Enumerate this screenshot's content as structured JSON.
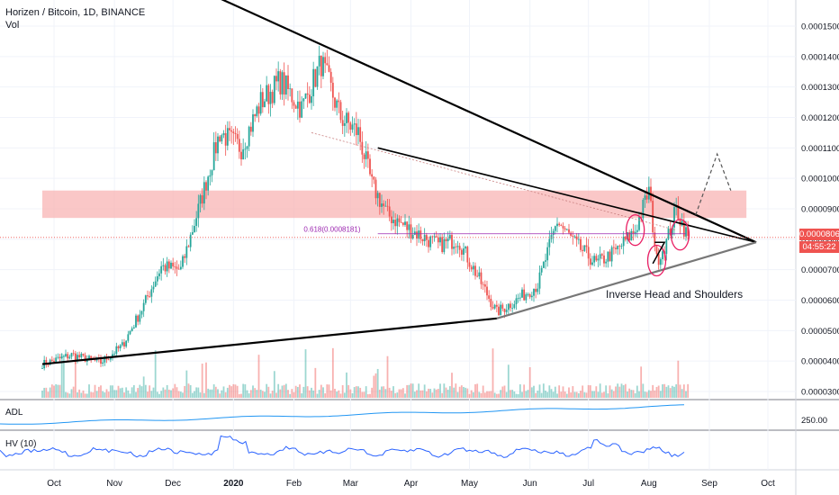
{
  "header": {
    "symbol_line": "Horizen / Bitcoin, 1D, BINANCE",
    "volume_label": "Vol"
  },
  "price_axis": {
    "ticks": [
      "0.00015000",
      "0.00014000",
      "0.00013000",
      "0.00012000",
      "0.00011000",
      "0.00010000",
      "0.00009000",
      "0.00008000",
      "0.00007000",
      "0.00006000",
      "0.00005000",
      "0.00004000",
      "0.00003000"
    ],
    "tick_values": [
      0.00015,
      0.00014,
      0.00013,
      0.00012,
      0.00011,
      0.0001,
      9e-05,
      8e-05,
      7e-05,
      6e-05,
      5e-05,
      4e-05,
      3e-05
    ],
    "current_price": "0.00008062",
    "countdown": "04:55:22",
    "badge_color": "#ef5350"
  },
  "time_axis": {
    "labels": [
      "Oct",
      "Nov",
      "Dec",
      "2020",
      "Feb",
      "Mar",
      "Apr",
      "May",
      "Jun",
      "Jul",
      "Aug",
      "Sep",
      "Oct"
    ]
  },
  "annotations": {
    "pattern_label": "Inverse Head and Shoulders",
    "fib_label": "0.618(0.0008181)",
    "resistance_zone_color": "#f8b4b4"
  },
  "indicators": {
    "adl": {
      "label": "ADL",
      "axis_tick": "250.00"
    },
    "hv": {
      "label": "HV (10)"
    }
  },
  "colors": {
    "up": "#26a69a",
    "down": "#ef5350",
    "adl_line": "#2196f3",
    "hv_line": "#2962ff",
    "trendline": "#000000",
    "pink_circle": "#e91e63"
  },
  "chart_data": {
    "type": "candlestick",
    "title": "Horizen / Bitcoin, 1D, BINANCE",
    "x_range": [
      "2019-09-25",
      "2020-10-10"
    ],
    "ylim": [
      2.5e-05,
      0.000155
    ],
    "y_scale": "linear",
    "grid": true,
    "close_path": [
      {
        "date": "2019-09-25",
        "close": 3.9e-05
      },
      {
        "date": "2019-10-10",
        "close": 4.2e-05
      },
      {
        "date": "2019-10-25",
        "close": 3.95e-05
      },
      {
        "date": "2019-11-05",
        "close": 4.5e-05
      },
      {
        "date": "2019-11-15",
        "close": 5.7e-05
      },
      {
        "date": "2019-11-25",
        "close": 7.1e-05
      },
      {
        "date": "2019-12-05",
        "close": 7e-05
      },
      {
        "date": "2019-12-15",
        "close": 9.2e-05
      },
      {
        "date": "2019-12-25",
        "close": 0.000115
      },
      {
        "date": "2020-01-05",
        "close": 0.00011
      },
      {
        "date": "2020-01-15",
        "close": 0.000125
      },
      {
        "date": "2020-01-25",
        "close": 0.000132
      },
      {
        "date": "2020-02-05",
        "close": 0.000123
      },
      {
        "date": "2020-02-15",
        "close": 0.000138
      },
      {
        "date": "2020-02-25",
        "close": 0.00012
      },
      {
        "date": "2020-03-05",
        "close": 0.000115
      },
      {
        "date": "2020-03-12",
        "close": 9.8e-05
      },
      {
        "date": "2020-03-20",
        "close": 8.8e-05
      },
      {
        "date": "2020-04-01",
        "close": 8.3e-05
      },
      {
        "date": "2020-04-15",
        "close": 7.8e-05
      },
      {
        "date": "2020-04-25",
        "close": 8e-05
      },
      {
        "date": "2020-05-05",
        "close": 6.8e-05
      },
      {
        "date": "2020-05-15",
        "close": 5.6e-05
      },
      {
        "date": "2020-05-25",
        "close": 6e-05
      },
      {
        "date": "2020-06-05",
        "close": 6.5e-05
      },
      {
        "date": "2020-06-15",
        "close": 8.6e-05
      },
      {
        "date": "2020-06-25",
        "close": 7.8e-05
      },
      {
        "date": "2020-07-05",
        "close": 7.2e-05
      },
      {
        "date": "2020-07-15",
        "close": 7.6e-05
      },
      {
        "date": "2020-07-25",
        "close": 8.3e-05
      },
      {
        "date": "2020-08-01",
        "close": 9.6e-05
      },
      {
        "date": "2020-08-05",
        "close": 7.3e-05
      },
      {
        "date": "2020-08-10",
        "close": 7.9e-05
      },
      {
        "date": "2020-08-15",
        "close": 9e-05
      },
      {
        "date": "2020-08-21",
        "close": 8.06e-05
      }
    ],
    "trendlines": [
      {
        "name": "upper",
        "from": {
          "date": "2019-12-15",
          "price": 0.000162
        },
        "to": {
          "date": "2020-09-25",
          "price": 7.9e-05
        }
      },
      {
        "name": "middle",
        "from": {
          "date": "2020-03-15",
          "price": 0.00011
        },
        "to": {
          "date": "2020-09-25",
          "price": 7.9e-05
        }
      },
      {
        "name": "lower",
        "from": {
          "date": "2019-09-25",
          "price": 3.9e-05
        },
        "to": {
          "date": "2020-05-15",
          "price": 5.4e-05
        }
      },
      {
        "name": "rising",
        "from": {
          "date": "2020-05-15",
          "price": 5.4e-05
        },
        "to": {
          "date": "2020-09-25",
          "price": 7.9e-05
        }
      }
    ],
    "resistance_zone": {
      "from": "2019-09-25",
      "to": "2020-09-20",
      "low": 8.7e-05,
      "high": 9.6e-05
    },
    "projection": [
      {
        "date": "2020-08-25",
        "price": 8.8e-05
      },
      {
        "date": "2020-09-05",
        "price": 0.000108
      },
      {
        "date": "2020-09-12",
        "price": 9.6e-05
      }
    ]
  }
}
